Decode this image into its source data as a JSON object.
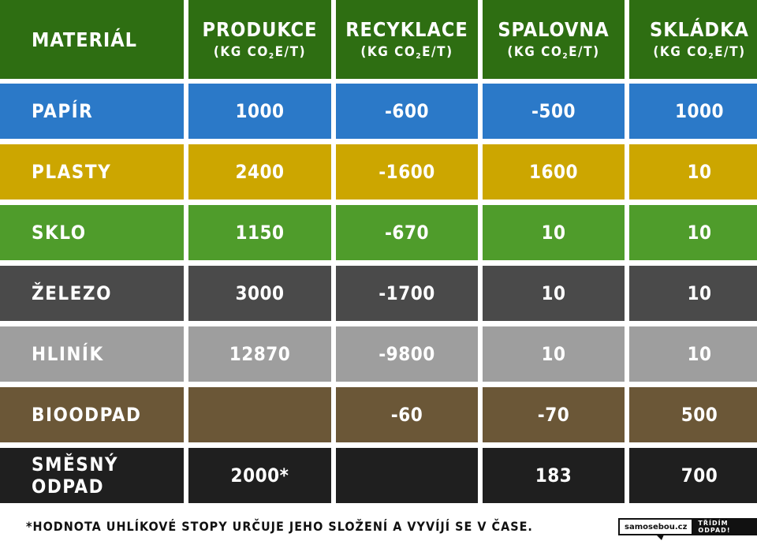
{
  "colors": {
    "header": "#2e6e12",
    "papir": "#2b79c8",
    "plasty": "#cca600",
    "sklo": "#4f9c2b",
    "zelezo": "#4a4a4a",
    "hlinik": "#9e9e9e",
    "bioodpad": "#6b5737",
    "smesny": "#1f1f1f"
  },
  "header": {
    "material": "MATERIÁL",
    "columns": [
      {
        "title": "PRODUKCE",
        "unit_pre": "(KG CO",
        "unit_sub": "2",
        "unit_post": "E/T)"
      },
      {
        "title": "RECYKLACE",
        "unit_pre": "(KG CO",
        "unit_sub": "2",
        "unit_post": "E/T)"
      },
      {
        "title": "SPALOVNA",
        "unit_pre": "(KG CO",
        "unit_sub": "2",
        "unit_post": "E/T)"
      },
      {
        "title": "SKLÁDKA",
        "unit_pre": "(KG CO",
        "unit_sub": "2",
        "unit_post": "E/T)"
      }
    ]
  },
  "rows": [
    {
      "name": "PAPÍR",
      "values": [
        "1000",
        "-600",
        "-500",
        "1000"
      ]
    },
    {
      "name": "PLASTY",
      "values": [
        "2400",
        "-1600",
        "1600",
        "10"
      ]
    },
    {
      "name": "SKLO",
      "values": [
        "1150",
        "-670",
        "10",
        "10"
      ]
    },
    {
      "name": "ŽELEZO",
      "values": [
        "3000",
        "-1700",
        "10",
        "10"
      ]
    },
    {
      "name": "HLINÍK",
      "values": [
        "12870",
        "-9800",
        "10",
        "10"
      ]
    },
    {
      "name": "BIOODPAD",
      "values": [
        "",
        "-60",
        "-70",
        "500"
      ]
    },
    {
      "name": "SMĚSNÝ ODPAD",
      "values": [
        "2000*",
        "",
        "183",
        "700"
      ]
    }
  ],
  "footnote": "*HODNOTA UHLÍKOVÉ STOPY URČUJE JEHO SLOŽENÍ A VYVÍJÍ SE V ČASE.",
  "logo": {
    "site": "samosebou.cz",
    "slogan": "TŘÍDÍM ODPAD!"
  }
}
